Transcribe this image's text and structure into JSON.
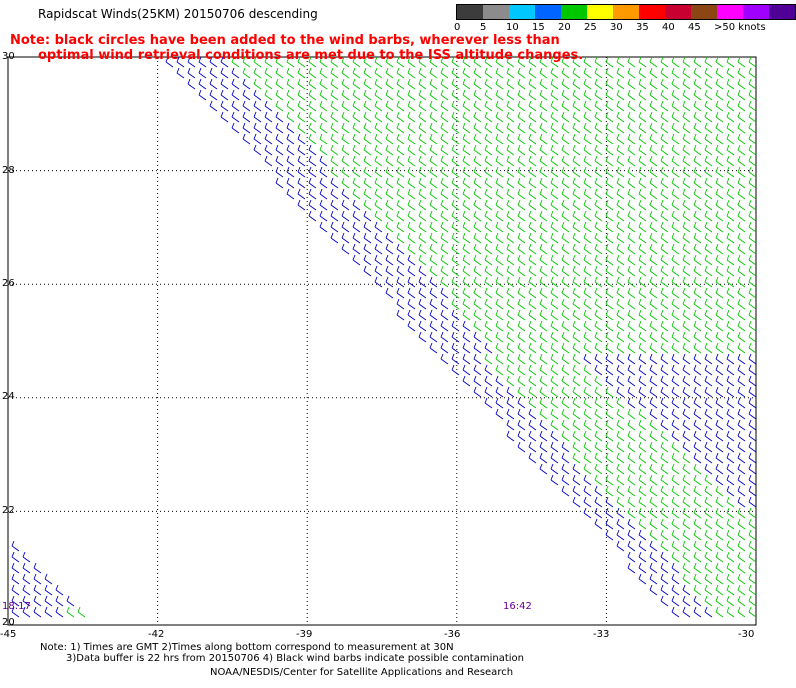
{
  "title": "Rapidscat Winds(25KM) 20150706 descending",
  "note_lines": [
    "Note: black circles have been added to the wind barbs, wherever less than",
    "optimal wind retrieval conditions are met due to the ISS altitude changes."
  ],
  "legend": {
    "colors": [
      "#3c3c3c",
      "#8c8c8c",
      "#00c8ff",
      "#0064ff",
      "#00c800",
      "#ffff00",
      "#ff9900",
      "#ff0000",
      "#c80032",
      "#8c4614",
      "#ff00ff",
      "#a000ff",
      "#500096"
    ],
    "labels": [
      "0",
      "5",
      "10",
      "15",
      "20",
      "25",
      "30",
      "35",
      "40",
      "45",
      ">50 knots"
    ]
  },
  "axes": {
    "lat_ticks": [
      "30",
      "28",
      "26",
      "24",
      "22",
      "20"
    ],
    "lon_ticks": [
      "-45",
      "-42",
      "-39",
      "-36",
      "-33",
      "-30"
    ]
  },
  "times": {
    "left": "18:17",
    "right": "16:42"
  },
  "footer_lines": [
    "Note: 1) Times are GMT 2)Times along bottom correspond to measurement at 30N",
    "3)Data buffer is 22 hrs from 20150706 4) Black wind barbs indicate possible contamination",
    "NOAA/NESDIS/Center for Satellite Applications and Research"
  ],
  "chart_data": {
    "type": "wind-barb-map",
    "lon_range": [
      -45,
      -30
    ],
    "lat_range": [
      20,
      30
    ],
    "grid": true,
    "barb_colors": {
      "slow": "#0000cc",
      "fast": "#00c800"
    },
    "swaths": [
      {
        "time": "18:17",
        "description": "lower-left corner swath, blue barbs"
      },
      {
        "time": "16:42",
        "description": "main diagonal swath, blue western edge, green interior"
      }
    ]
  }
}
